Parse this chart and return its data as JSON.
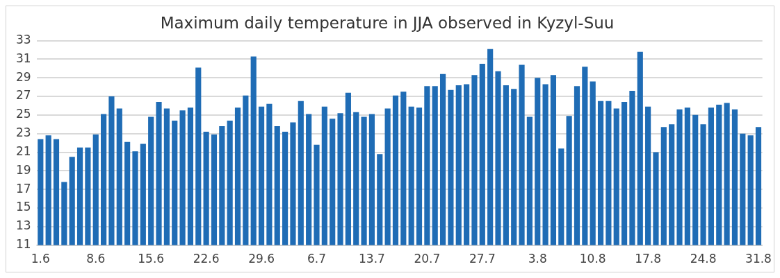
{
  "chart_data": {
    "type": "bar",
    "title": "Maximum daily temperature in JJA observed in Kyzyl-Suu",
    "categories": [
      "1.6",
      null,
      null,
      null,
      null,
      null,
      null,
      "8.6",
      null,
      null,
      null,
      null,
      null,
      null,
      "15.6",
      null,
      null,
      null,
      null,
      null,
      null,
      "22.6",
      null,
      null,
      null,
      null,
      null,
      null,
      "29.6",
      null,
      null,
      null,
      null,
      null,
      null,
      "6.7",
      null,
      null,
      null,
      null,
      null,
      null,
      "13.7",
      null,
      null,
      null,
      null,
      null,
      null,
      "20.7",
      null,
      null,
      null,
      null,
      null,
      null,
      "27.7",
      null,
      null,
      null,
      null,
      null,
      null,
      "3.8",
      null,
      null,
      null,
      null,
      null,
      null,
      "10.8",
      null,
      null,
      null,
      null,
      null,
      null,
      "17.8",
      null,
      null,
      null,
      null,
      null,
      null,
      "24.8",
      null,
      null,
      null,
      null,
      null,
      null,
      "31.8"
    ],
    "values": [
      22.4,
      22.8,
      22.4,
      17.8,
      20.5,
      21.5,
      21.5,
      22.9,
      25.1,
      27.0,
      25.7,
      22.1,
      21.1,
      21.9,
      24.8,
      26.4,
      25.7,
      24.4,
      25.5,
      25.8,
      30.1,
      23.2,
      22.9,
      23.8,
      24.4,
      25.8,
      27.1,
      31.3,
      25.9,
      26.2,
      23.8,
      23.2,
      24.2,
      26.5,
      25.1,
      21.8,
      25.9,
      24.6,
      25.2,
      27.4,
      25.3,
      24.8,
      25.1,
      20.8,
      25.7,
      27.1,
      27.5,
      25.9,
      25.8,
      28.1,
      28.1,
      29.4,
      27.7,
      28.2,
      28.3,
      29.3,
      30.5,
      32.1,
      29.7,
      28.2,
      27.8,
      30.4,
      24.8,
      29.0,
      28.3,
      29.3,
      21.4,
      24.9,
      28.1,
      30.2,
      28.6,
      26.5,
      26.5,
      25.7,
      26.4,
      27.6,
      31.8,
      25.9,
      21.0,
      23.7,
      24.0,
      25.6,
      25.8,
      25.0,
      24.0,
      25.8,
      26.1,
      26.3,
      25.6,
      23.0,
      22.8,
      23.7
    ],
    "color": "#1f6cb5",
    "ylim": [
      11,
      33
    ],
    "yticks": [
      11,
      13,
      15,
      17,
      19,
      21,
      23,
      25,
      27,
      29,
      31,
      33
    ],
    "grid": "y"
  }
}
